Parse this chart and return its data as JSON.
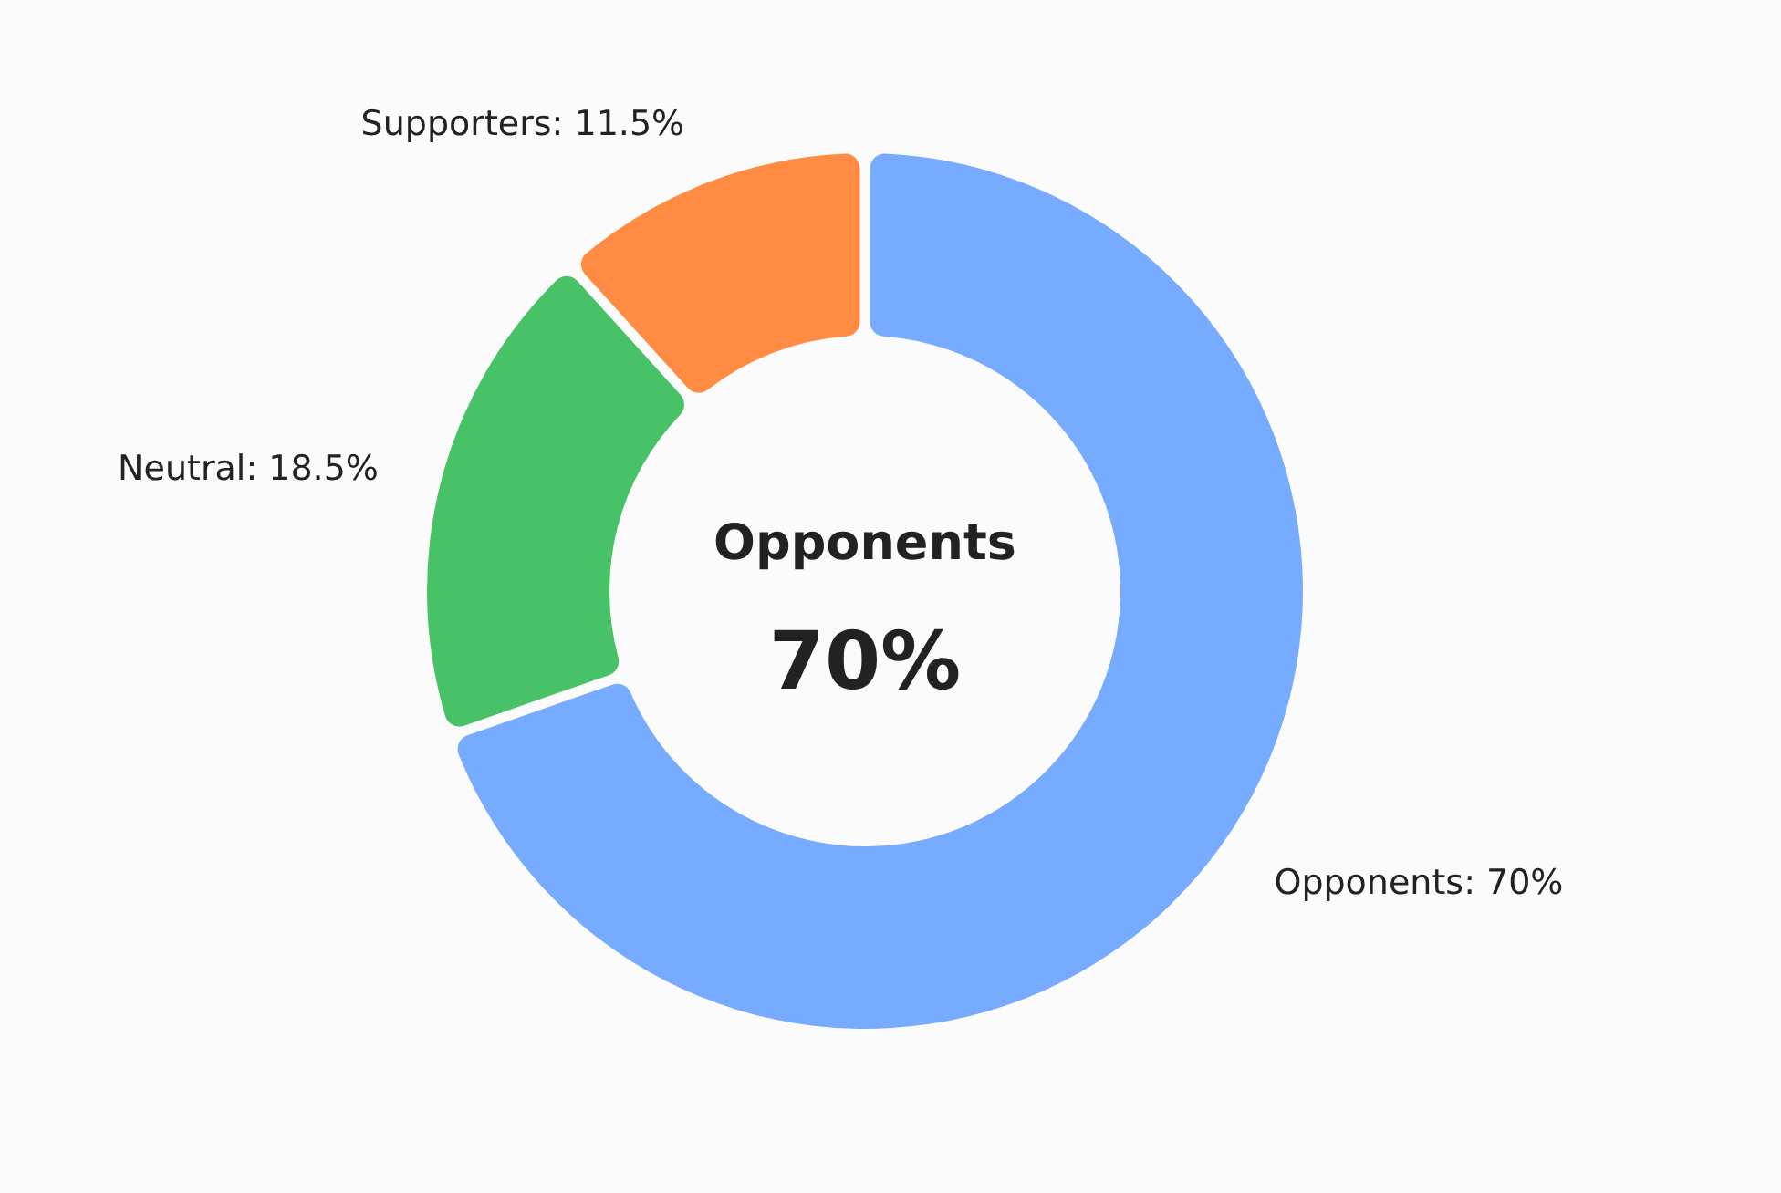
{
  "chart_data": {
    "type": "donut",
    "categories": [
      "Opponents",
      "Neutral",
      "Supporters"
    ],
    "values": [
      70,
      18.5,
      11.5
    ],
    "colors": [
      "#76abff",
      "#47c266",
      "#ff8c42"
    ],
    "value_labels": [
      ": 70%",
      ": 18.5%",
      ": 11.5%"
    ],
    "annotations": [
      "Opponents",
      "70%"
    ]
  }
}
